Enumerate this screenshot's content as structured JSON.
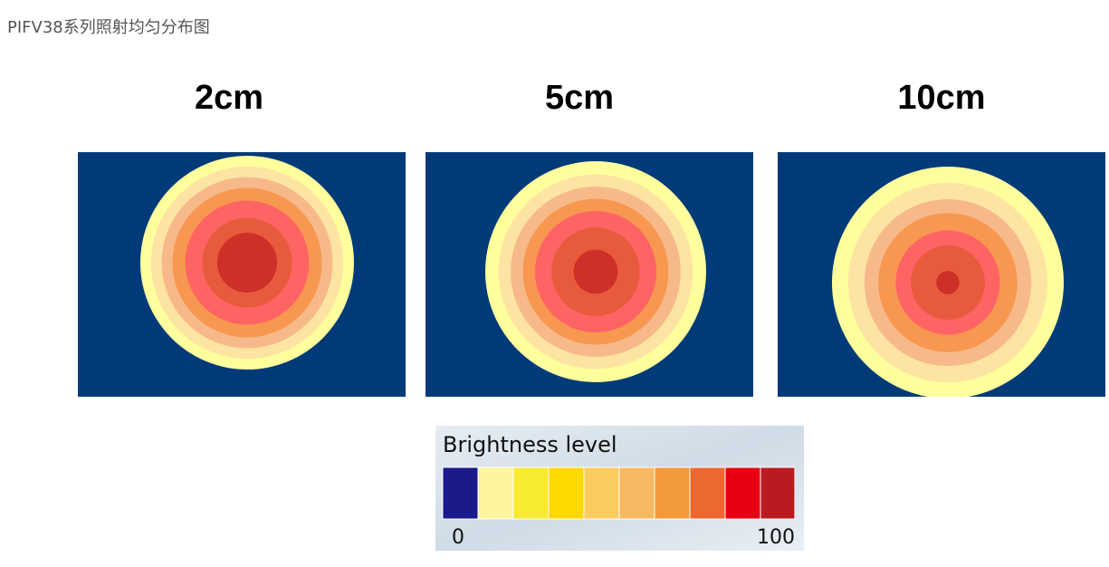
{
  "header": {
    "title": "PIFV38系列照射均匀分布图"
  },
  "panels": [
    {
      "label": "2cm"
    },
    {
      "label": "5cm"
    },
    {
      "label": "10cm"
    }
  ],
  "legend": {
    "title": "Brightness level",
    "min_label": "0",
    "max_label": "100"
  }
}
